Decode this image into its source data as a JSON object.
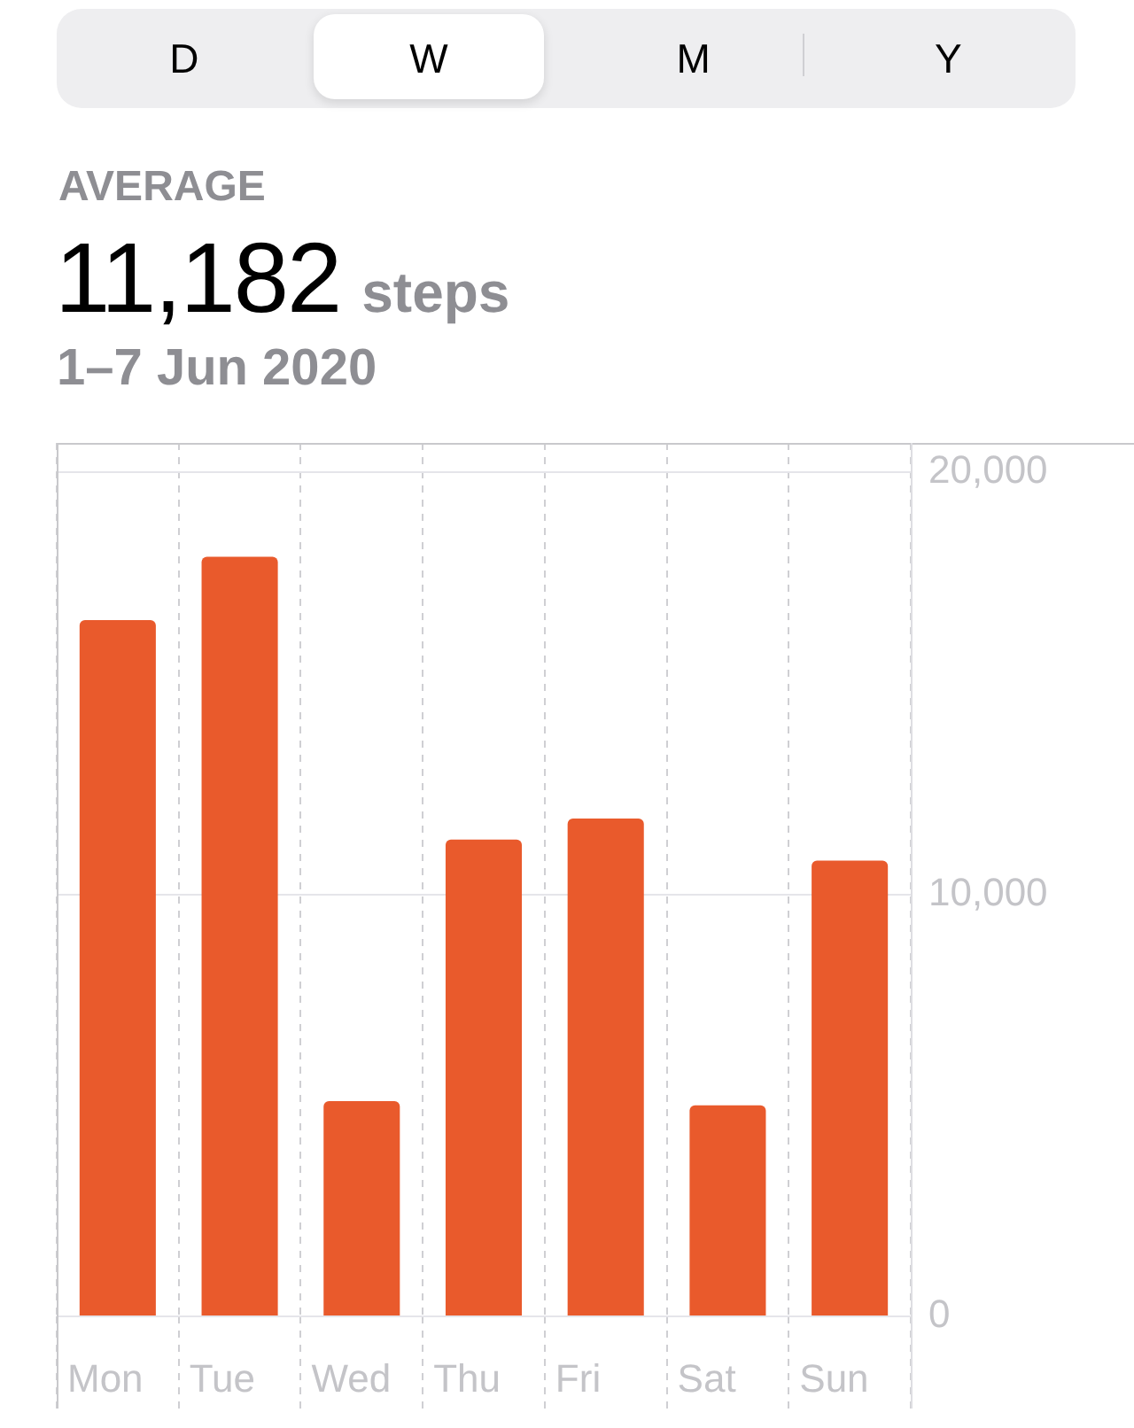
{
  "chart_data": {
    "type": "bar",
    "title": "AVERAGE",
    "subtitle": "1–7 Jun 2020",
    "annotations": [
      "D",
      "W",
      "M",
      "Y",
      "11,182",
      "steps"
    ],
    "categories": [
      "Mon",
      "Tue",
      "Wed",
      "Thu",
      "Fri",
      "Sat",
      "Sun"
    ],
    "values": [
      16500,
      18000,
      5100,
      11300,
      11800,
      5000,
      10800
    ],
    "color": "#e95a2c",
    "ylim": [
      0,
      20700
    ],
    "yticks": [
      0,
      {
        "value": 10000,
        "label": "10,000"
      },
      {
        "value": 20000,
        "label": "20,000"
      }
    ],
    "grid": true
  }
}
